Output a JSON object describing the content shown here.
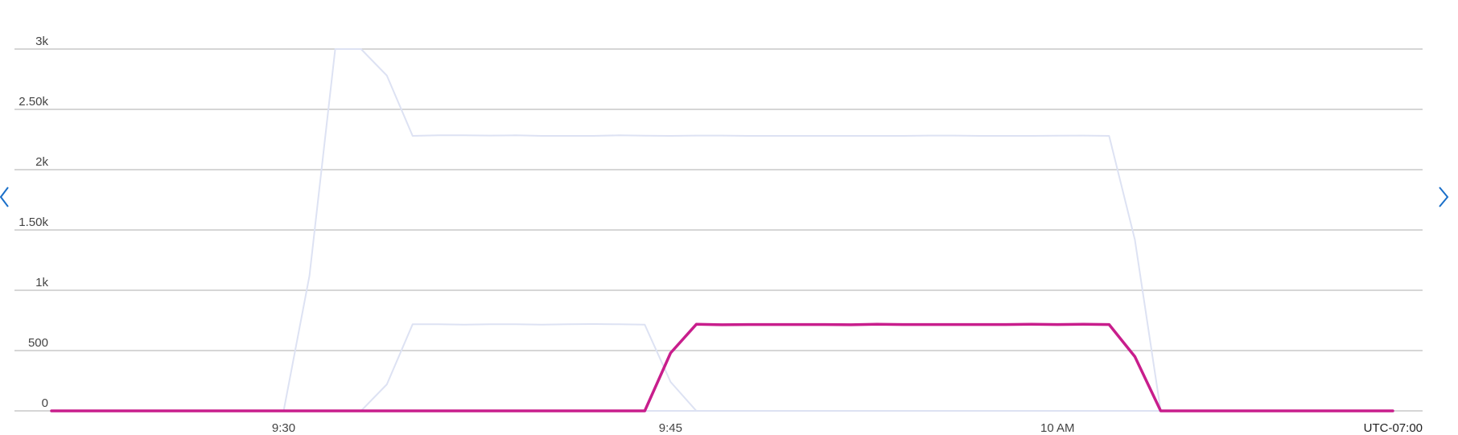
{
  "chart_data": {
    "type": "line",
    "timezone_label": "UTC-07:00",
    "x_start": "9:21",
    "x_end": "10:13",
    "x_step_minutes": 1,
    "x_ticks": [
      {
        "label": "9:30",
        "value": 9
      },
      {
        "label": "9:45",
        "value": 24
      },
      {
        "label": "10 AM",
        "value": 39
      }
    ],
    "y_ticks": [
      {
        "label": "0",
        "value": 0
      },
      {
        "label": "500",
        "value": 500
      },
      {
        "label": "1k",
        "value": 1000
      },
      {
        "label": "1.50k",
        "value": 1500
      },
      {
        "label": "2k",
        "value": 2000
      },
      {
        "label": "2.50k",
        "value": 2500
      },
      {
        "label": "3k",
        "value": 3000
      }
    ],
    "ylim": [
      0,
      3000
    ],
    "grid": true,
    "series": [
      {
        "highlighted": false,
        "color": "#dde2f3",
        "values": [
          0,
          0,
          0,
          0,
          0,
          0,
          0,
          0,
          0,
          0,
          0,
          0,
          0,
          0,
          0,
          0,
          0,
          0,
          0,
          0,
          0,
          0,
          0,
          0,
          0,
          0,
          0,
          0,
          0,
          0,
          0,
          0,
          0,
          0,
          0,
          0,
          0,
          0,
          0,
          0,
          0,
          0,
          0,
          0,
          0,
          0,
          0,
          0,
          0,
          0,
          0,
          0,
          0
        ]
      },
      {
        "highlighted": false,
        "color": "#dde2f3",
        "values": [
          0,
          0,
          0,
          0,
          0,
          0,
          0,
          0,
          0,
          0,
          0,
          0,
          0,
          0,
          0,
          0,
          0,
          0,
          0,
          0,
          0,
          0,
          0,
          0,
          0,
          0,
          0,
          0,
          0,
          0,
          0,
          0,
          0,
          0,
          0,
          0,
          0,
          0,
          0,
          0,
          0,
          0,
          0,
          0,
          0,
          0,
          0,
          0,
          0,
          0,
          0,
          0,
          0
        ]
      },
      {
        "highlighted": false,
        "color": "#dde2f3",
        "values": [
          0,
          0,
          0,
          0,
          0,
          0,
          0,
          0,
          0,
          0,
          0,
          0,
          0,
          0,
          0,
          0,
          0,
          0,
          0,
          0,
          0,
          0,
          0,
          0,
          0,
          0,
          0,
          0,
          0,
          0,
          0,
          0,
          0,
          0,
          0,
          0,
          0,
          0,
          0,
          0,
          0,
          0,
          0,
          0,
          0,
          0,
          0,
          0,
          0,
          0,
          0,
          0,
          0
        ]
      },
      {
        "highlighted": false,
        "color": "#dde2f3",
        "values": [
          0,
          0,
          0,
          0,
          0,
          0,
          0,
          0,
          0,
          0,
          0,
          0,
          0,
          0,
          0,
          0,
          0,
          0,
          0,
          0,
          0,
          0,
          0,
          0,
          0,
          0,
          0,
          0,
          0,
          0,
          0,
          0,
          0,
          0,
          0,
          0,
          0,
          0,
          0,
          0,
          0,
          0,
          0,
          0,
          0,
          0,
          0,
          0,
          0,
          0,
          0,
          0,
          0
        ]
      },
      {
        "highlighted": false,
        "color": "#dde2f3",
        "values": [
          0,
          0,
          0,
          0,
          0,
          0,
          0,
          0,
          0,
          0,
          0,
          0,
          0,
          0,
          0,
          0,
          0,
          0,
          0,
          0,
          0,
          0,
          0,
          0,
          0,
          0,
          0,
          0,
          0,
          0,
          0,
          0,
          0,
          0,
          0,
          0,
          0,
          0,
          0,
          0,
          0,
          0,
          0,
          0,
          0,
          0,
          0,
          0,
          0,
          0,
          0,
          0,
          0
        ]
      },
      {
        "highlighted": false,
        "color": "#dde2f3",
        "values": [
          0,
          0,
          0,
          0,
          0,
          0,
          0,
          0,
          0,
          0,
          0,
          0,
          0,
          0,
          0,
          0,
          0,
          0,
          0,
          0,
          0,
          0,
          0,
          0,
          0,
          0,
          0,
          0,
          0,
          0,
          0,
          0,
          0,
          0,
          0,
          0,
          0,
          0,
          0,
          0,
          0,
          0,
          0,
          0,
          0,
          0,
          0,
          0,
          0,
          0,
          0,
          0,
          0
        ]
      },
      {
        "highlighted": false,
        "color": "#dde2f3",
        "values": [
          0,
          0,
          0,
          0,
          0,
          0,
          0,
          0,
          0,
          0,
          0,
          0,
          0,
          0,
          0,
          0,
          0,
          0,
          0,
          0,
          0,
          0,
          0,
          0,
          0,
          0,
          0,
          0,
          0,
          0,
          0,
          0,
          0,
          0,
          0,
          0,
          0,
          0,
          0,
          0,
          0,
          0,
          0,
          0,
          0,
          0,
          0,
          0,
          0,
          0,
          0,
          0,
          0
        ]
      },
      {
        "highlighted": false,
        "color": "#dde2f3",
        "values": [
          0,
          0,
          0,
          0,
          0,
          0,
          0,
          0,
          0,
          0,
          0,
          0,
          0,
          0,
          0,
          0,
          0,
          0,
          0,
          0,
          0,
          0,
          0,
          0,
          0,
          0,
          0,
          0,
          0,
          0,
          0,
          0,
          0,
          0,
          0,
          0,
          0,
          0,
          0,
          0,
          0,
          0,
          0,
          0,
          0,
          0,
          0,
          0,
          0,
          0,
          0,
          0,
          0
        ]
      },
      {
        "highlighted": false,
        "color": "#dde2f3",
        "values": [
          0,
          0,
          0,
          0,
          0,
          0,
          0,
          0,
          0,
          0,
          0,
          0,
          0,
          0,
          0,
          0,
          0,
          0,
          0,
          0,
          0,
          0,
          0,
          0,
          0,
          0,
          0,
          0,
          0,
          0,
          0,
          0,
          0,
          0,
          0,
          0,
          0,
          0,
          0,
          0,
          0,
          0,
          0,
          0,
          0,
          0,
          0,
          0,
          0,
          0,
          0,
          0,
          0
        ]
      },
      {
        "highlighted": false,
        "color": "#dde2f3",
        "values": [
          0,
          0,
          0,
          0,
          0,
          0,
          0,
          0,
          0,
          0,
          0,
          0,
          0,
          0,
          0,
          0,
          0,
          0,
          0,
          0,
          0,
          0,
          0,
          0,
          0,
          0,
          0,
          0,
          0,
          0,
          0,
          0,
          0,
          0,
          0,
          0,
          0,
          0,
          0,
          0,
          0,
          0,
          0,
          0,
          0,
          0,
          0,
          0,
          0,
          0,
          0,
          0,
          0
        ]
      },
      {
        "highlighted": false,
        "color": "#dde2f3",
        "values": [
          0,
          0,
          0,
          0,
          0,
          0,
          0,
          0,
          0,
          0,
          1120,
          3000,
          3000,
          2780,
          2280,
          2285,
          2285,
          2283,
          2285,
          2280,
          2280,
          2280,
          2285,
          2282,
          2280,
          2283,
          2283,
          2280,
          2280,
          2280,
          2280,
          2280,
          2280,
          2280,
          2283,
          2283,
          2280,
          2280,
          2280,
          2282,
          2283,
          2280,
          1420,
          0,
          0,
          0,
          0,
          0,
          0,
          0,
          0,
          0,
          0
        ]
      },
      {
        "highlighted": false,
        "color": "#dde2f3",
        "values": [
          0,
          0,
          0,
          0,
          0,
          0,
          0,
          0,
          0,
          0,
          0,
          0,
          0,
          220,
          718,
          718,
          715,
          718,
          718,
          715,
          718,
          720,
          718,
          715,
          240,
          0,
          0,
          0,
          0,
          0,
          0,
          0,
          0,
          0,
          0,
          0,
          0,
          0,
          0,
          0,
          0,
          0,
          0,
          0,
          0,
          0,
          0,
          0,
          0,
          0,
          0,
          0,
          0
        ]
      },
      {
        "highlighted": true,
        "color": "#c81e8c",
        "values": [
          0,
          0,
          0,
          0,
          0,
          0,
          0,
          0,
          0,
          0,
          0,
          0,
          0,
          0,
          0,
          0,
          0,
          0,
          0,
          0,
          0,
          0,
          0,
          0,
          480,
          718,
          714,
          716,
          716,
          716,
          716,
          714,
          718,
          716,
          716,
          716,
          716,
          716,
          718,
          716,
          718,
          716,
          450,
          0,
          0,
          0,
          0,
          0,
          0,
          0,
          0,
          0,
          0
        ]
      }
    ]
  },
  "navigation": {
    "prev_icon": "chevron-left-icon",
    "next_icon": "chevron-right-icon",
    "color": "#1a6fc9"
  }
}
